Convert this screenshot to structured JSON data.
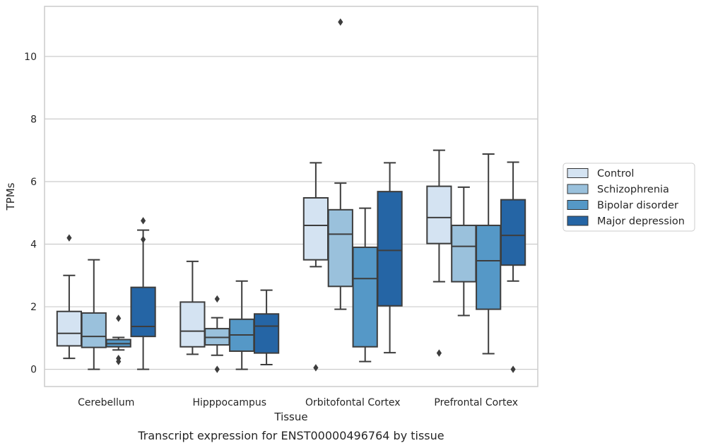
{
  "caption": "Transcript expression for ENST00000496764 by tissue",
  "chart_data": {
    "type": "box",
    "xlabel": "Tissue",
    "ylabel": "TPMs",
    "ylim": [
      -0.55,
      11.6
    ],
    "yticks": [
      0,
      2,
      4,
      6,
      8,
      10
    ],
    "grid": "horizontal",
    "legend_position": "right",
    "categories": [
      "Cerebellum",
      "Hipppocampus",
      "Orbitofontal Cortex",
      "Prefrontal Cortex"
    ],
    "series": [
      {
        "name": "Control",
        "color": "#d4e3f2",
        "boxes": [
          {
            "whislo": 0.35,
            "q1": 0.75,
            "med": 1.15,
            "q3": 1.85,
            "whishi": 3.0,
            "fliers": [
              4.2
            ]
          },
          {
            "whislo": 0.48,
            "q1": 0.72,
            "med": 1.22,
            "q3": 2.15,
            "whishi": 3.45,
            "fliers": []
          },
          {
            "whislo": 3.28,
            "q1": 3.5,
            "med": 4.6,
            "q3": 5.48,
            "whishi": 6.6,
            "fliers": [
              0.05
            ]
          },
          {
            "whislo": 2.8,
            "q1": 4.02,
            "med": 4.85,
            "q3": 5.85,
            "whishi": 7.0,
            "fliers": [
              0.52
            ]
          }
        ]
      },
      {
        "name": "Schizophrenia",
        "color": "#9ac1dc",
        "boxes": [
          {
            "whislo": 0.0,
            "q1": 0.7,
            "med": 1.05,
            "q3": 1.8,
            "whishi": 3.5,
            "fliers": []
          },
          {
            "whislo": 0.45,
            "q1": 0.78,
            "med": 1.02,
            "q3": 1.3,
            "whishi": 1.65,
            "fliers": [
              2.25,
              0.0
            ]
          },
          {
            "whislo": 1.92,
            "q1": 2.65,
            "med": 4.32,
            "q3": 5.1,
            "whishi": 5.95,
            "fliers": [
              11.1
            ]
          },
          {
            "whislo": 1.72,
            "q1": 2.8,
            "med": 3.93,
            "q3": 4.6,
            "whishi": 5.82,
            "fliers": []
          }
        ]
      },
      {
        "name": "Bipolar disorder",
        "color": "#5598c7",
        "boxes": [
          {
            "whislo": 0.62,
            "q1": 0.72,
            "med": 0.82,
            "q3": 0.95,
            "whishi": 1.02,
            "fliers": [
              1.63,
              0.35,
              0.25
            ]
          },
          {
            "whislo": 0.0,
            "q1": 0.58,
            "med": 1.1,
            "q3": 1.6,
            "whishi": 2.82,
            "fliers": []
          },
          {
            "whislo": 0.25,
            "q1": 0.72,
            "med": 2.9,
            "q3": 3.9,
            "whishi": 5.15,
            "fliers": []
          },
          {
            "whislo": 0.5,
            "q1": 1.92,
            "med": 3.47,
            "q3": 4.6,
            "whishi": 6.88,
            "fliers": []
          }
        ]
      },
      {
        "name": "Major depression",
        "color": "#2565a5",
        "boxes": [
          {
            "whislo": 0.0,
            "q1": 1.05,
            "med": 1.37,
            "q3": 2.62,
            "whishi": 4.45,
            "fliers": [
              4.75,
              4.15
            ]
          },
          {
            "whislo": 0.15,
            "q1": 0.52,
            "med": 1.38,
            "q3": 1.77,
            "whishi": 2.53,
            "fliers": []
          },
          {
            "whislo": 0.53,
            "q1": 2.03,
            "med": 3.8,
            "q3": 5.68,
            "whishi": 6.6,
            "fliers": []
          },
          {
            "whislo": 2.82,
            "q1": 3.33,
            "med": 4.28,
            "q3": 5.42,
            "whishi": 6.62,
            "fliers": [
              0.0
            ]
          }
        ]
      }
    ]
  }
}
